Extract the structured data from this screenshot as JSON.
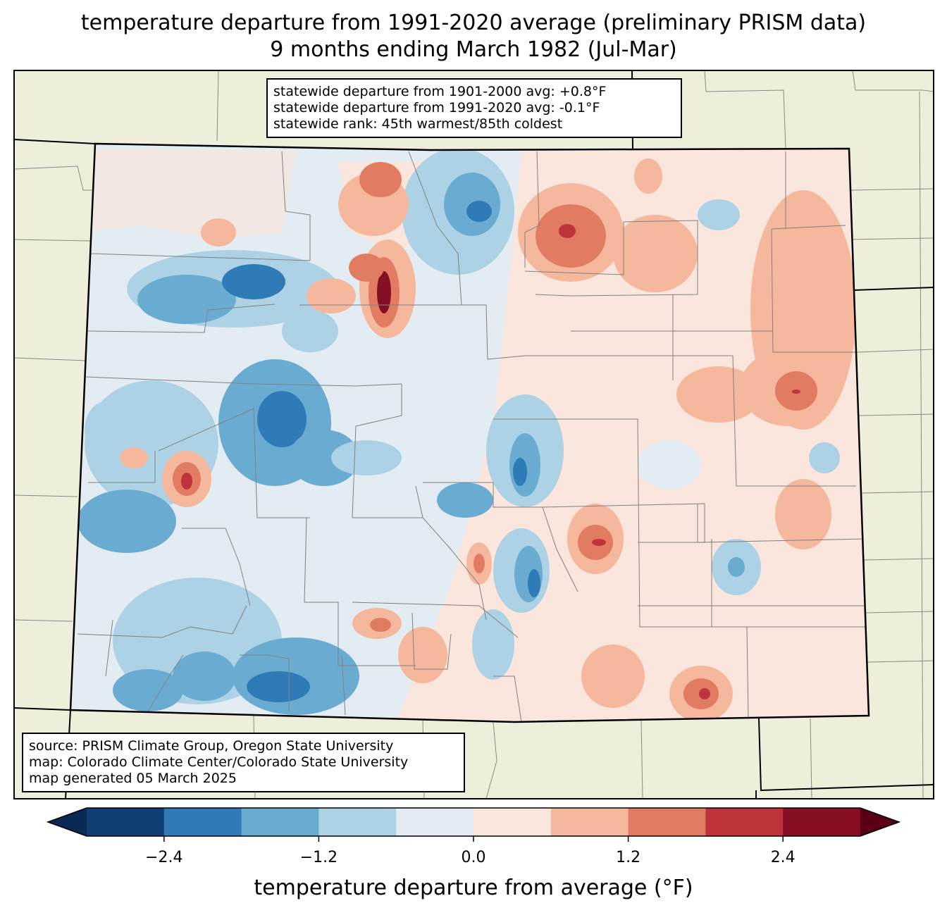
{
  "title": {
    "line1": "temperature departure from 1991-2020 average (preliminary PRISM data)",
    "line2": "9 months ending March 1982 (Jul-Mar)"
  },
  "stats_box": {
    "line1": "statewide departure from 1901-2000 avg: +0.8°F",
    "line2": "statewide departure from 1991-2020 avg: -0.1°F",
    "line3": "statewide rank: 45th warmest/85th coldest"
  },
  "source_box": {
    "line1": "source: PRISM Climate Group, Oregon State University",
    "line2": "map: Colorado Climate Center/Colorado State University",
    "line3": "map generated 05 March 2025"
  },
  "colors": {
    "land_outside": "#efeedb",
    "bins": [
      "#0f3f75",
      "#2f7bb8",
      "#6aacd1",
      "#aed2e5",
      "#e3ecf3",
      "#fae6dd",
      "#f6b89c",
      "#e17c63",
      "#bf333a",
      "#870f25"
    ],
    "extend_low": "#0a2a55",
    "extend_high": "#5a0016"
  },
  "colorbar": {
    "ticks": [
      "−2.4",
      "−1.2",
      "0.0",
      "1.2",
      "2.4"
    ],
    "tick_values": [
      -2.4,
      -1.2,
      0.0,
      1.2,
      2.4
    ],
    "range": [
      -3.0,
      3.0
    ],
    "label": "temperature departure from average (°F)"
  }
}
